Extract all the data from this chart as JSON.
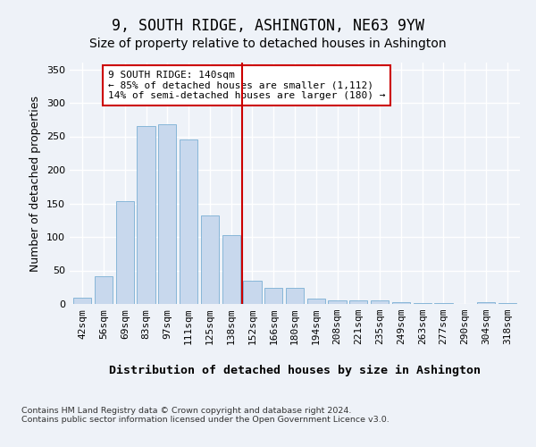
{
  "title": "9, SOUTH RIDGE, ASHINGTON, NE63 9YW",
  "subtitle": "Size of property relative to detached houses in Ashington",
  "xlabel": "Distribution of detached houses by size in Ashington",
  "ylabel": "Number of detached properties",
  "categories": [
    "42sqm",
    "56sqm",
    "69sqm",
    "83sqm",
    "97sqm",
    "111sqm",
    "125sqm",
    "138sqm",
    "152sqm",
    "166sqm",
    "180sqm",
    "194sqm",
    "208sqm",
    "221sqm",
    "235sqm",
    "249sqm",
    "263sqm",
    "277sqm",
    "290sqm",
    "304sqm",
    "318sqm"
  ],
  "values": [
    10,
    41,
    153,
    265,
    268,
    245,
    132,
    103,
    35,
    24,
    24,
    8,
    6,
    6,
    5,
    3,
    2,
    2,
    0,
    3,
    2
  ],
  "bar_color": "#c8d8ed",
  "bar_edge_color": "#7aafd4",
  "vline_x": 7.5,
  "vline_color": "#cc0000",
  "annotation_text": "9 SOUTH RIDGE: 140sqm\n← 85% of detached houses are smaller (1,112)\n14% of semi-detached houses are larger (180) →",
  "annotation_box_color": "#ffffff",
  "annotation_box_edge": "#cc0000",
  "ylim": [
    0,
    360
  ],
  "yticks": [
    0,
    50,
    100,
    150,
    200,
    250,
    300,
    350
  ],
  "background_color": "#eef2f8",
  "plot_background": "#eef2f8",
  "grid_color": "#ffffff",
  "title_fontsize": 12,
  "subtitle_fontsize": 10,
  "axis_label_fontsize": 9,
  "tick_fontsize": 8,
  "footer_text": "Contains HM Land Registry data © Crown copyright and database right 2024.\nContains public sector information licensed under the Open Government Licence v3.0."
}
